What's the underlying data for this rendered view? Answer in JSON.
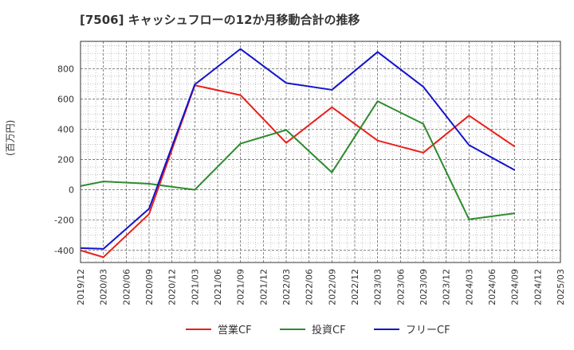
{
  "chart_data": {
    "type": "line",
    "title": "[7506]  キャッシュフローの12か月移動合計の推移",
    "ylabel": "(百万円)",
    "xlabel": "",
    "ylim": [
      -480,
      980
    ],
    "yticks": [
      -400,
      -200,
      0,
      200,
      400,
      600,
      800
    ],
    "grid": true,
    "legend_position": "bottom",
    "categories": [
      "2019/12",
      "2020/03",
      "2020/06",
      "2020/09",
      "2020/12",
      "2021/03",
      "2021/06",
      "2021/09",
      "2021/12",
      "2022/03",
      "2022/06",
      "2022/09",
      "2022/12",
      "2023/03",
      "2023/06",
      "2023/09",
      "2023/12",
      "2024/03",
      "2024/06",
      "2024/09",
      "2024/12",
      "2025/03"
    ],
    "series": [
      {
        "name": "営業CF",
        "color": "#e8201a",
        "points": [
          [
            "2019/12",
            -400
          ],
          [
            "2020/03",
            -445
          ],
          [
            "2020/09",
            -160
          ],
          [
            "2021/03",
            690
          ],
          [
            "2021/09",
            625
          ],
          [
            "2022/03",
            310
          ],
          [
            "2022/09",
            545
          ],
          [
            "2023/03",
            325
          ],
          [
            "2023/09",
            245
          ],
          [
            "2024/03",
            490
          ],
          [
            "2024/09",
            285
          ]
        ]
      },
      {
        "name": "投資CF",
        "color": "#2e8b2e",
        "points": [
          [
            "2019/12",
            25
          ],
          [
            "2020/03",
            55
          ],
          [
            "2020/09",
            40
          ],
          [
            "2021/03",
            0
          ],
          [
            "2021/09",
            305
          ],
          [
            "2022/03",
            395
          ],
          [
            "2022/09",
            115
          ],
          [
            "2023/03",
            585
          ],
          [
            "2023/09",
            435
          ],
          [
            "2024/03",
            -195
          ],
          [
            "2024/09",
            -155
          ]
        ]
      },
      {
        "name": "フリーCF",
        "color": "#1414cc",
        "points": [
          [
            "2019/12",
            -385
          ],
          [
            "2020/03",
            -390
          ],
          [
            "2020/09",
            -125
          ],
          [
            "2021/03",
            695
          ],
          [
            "2021/09",
            930
          ],
          [
            "2022/03",
            705
          ],
          [
            "2022/09",
            660
          ],
          [
            "2023/03",
            910
          ],
          [
            "2023/09",
            680
          ],
          [
            "2024/03",
            295
          ],
          [
            "2024/09",
            130
          ]
        ]
      }
    ]
  }
}
